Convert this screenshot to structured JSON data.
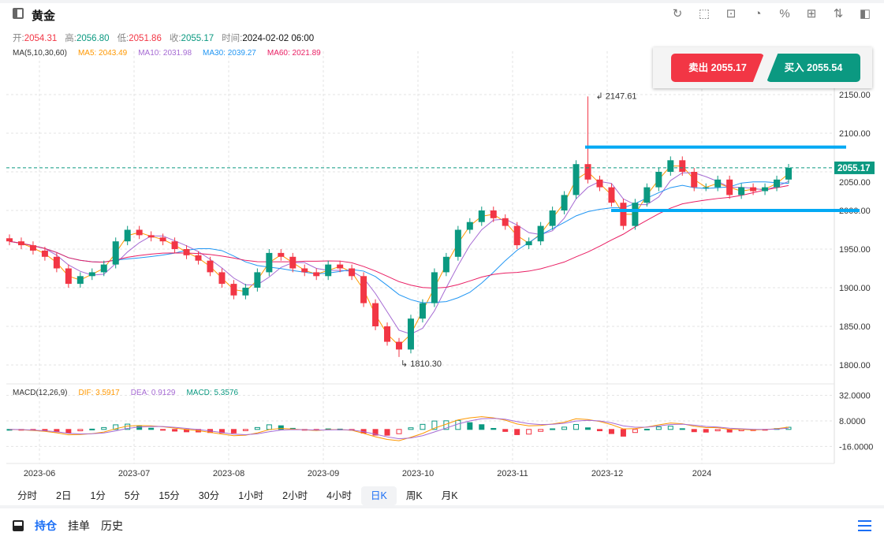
{
  "header": {
    "title": "黄金",
    "tools": [
      "refresh-icon",
      "draw-icon",
      "indicator-icon",
      "pie-chart-icon",
      "percent-icon",
      "grid-icon",
      "sort-icon",
      "panel-icon"
    ]
  },
  "ohlc": {
    "open_label": "开:",
    "open": "2054.31",
    "high_label": "高:",
    "high": "2056.80",
    "low_label": "低:",
    "low": "2051.86",
    "close_label": "收:",
    "close": "2055.17",
    "time_label": "时间:",
    "time": "2024-02-02 06:00"
  },
  "ma": {
    "label": "MA(5,10,30,60)",
    "ma5": "MA5: 2043.49",
    "ma10": "MA10: 2031.98",
    "ma30": "MA30: 2039.27",
    "ma60": "MA60: 2021.89"
  },
  "macd": {
    "label": "MACD(12,26,9)",
    "dif": "DIF: 3.5917",
    "dea": "DEA: 0.9129",
    "macd": "MACD: 5.3576"
  },
  "trade": {
    "sell": "卖出 2055.17",
    "buy": "买入 2055.54"
  },
  "timeframes": [
    "分时",
    "2日",
    "1分",
    "5分",
    "15分",
    "30分",
    "1小时",
    "2小时",
    "4小时",
    "日K",
    "周K",
    "月K"
  ],
  "active_timeframe": "日K",
  "bottom_tabs": [
    "持仓",
    "挂单",
    "历史"
  ],
  "colors": {
    "up": "#0b9981",
    "down": "#f23645",
    "ma5": "#ff9800",
    "ma10": "#a66bd3",
    "ma30": "#2196f3",
    "ma60": "#e91e63",
    "level_line": "#03a9f4",
    "accent": "#1a6ef5"
  },
  "chart_data": {
    "type": "candlestick",
    "price_ticks": [
      "2150.00",
      "2100.00",
      "2050.00",
      "2000.00",
      "1950.00",
      "1900.00",
      "1850.00",
      "1800.00"
    ],
    "macd_ticks": [
      "32.0000",
      "8.0000",
      "-16.0000"
    ],
    "date_ticks": [
      "2023-06",
      "2023-07",
      "2023-08",
      "2023-09",
      "2023-10",
      "2023-11",
      "2023-12",
      "2024"
    ],
    "ylim": [
      1790,
      2160
    ],
    "current_price": "2055.17",
    "max_label": "2147.61",
    "min_label": "1810.30",
    "horizontal_levels": [
      2082,
      2000
    ],
    "grid": true,
    "closes": [
      1960,
      1955,
      1948,
      1940,
      1925,
      1905,
      1915,
      1920,
      1930,
      1960,
      1975,
      1968,
      1965,
      1960,
      1950,
      1942,
      1935,
      1920,
      1905,
      1890,
      1900,
      1920,
      1945,
      1940,
      1925,
      1920,
      1915,
      1930,
      1925,
      1915,
      1880,
      1850,
      1830,
      1820,
      1860,
      1880,
      1920,
      1940,
      1975,
      1985,
      2000,
      1990,
      1980,
      1955,
      1960,
      1980,
      2000,
      2020,
      2060,
      2040,
      2030,
      2010,
      1980,
      2010,
      2030,
      2050,
      2065,
      2050,
      2030,
      2030,
      2040,
      2020,
      2030,
      2025,
      2030,
      2040,
      2055.17
    ],
    "spike_high": 2147.61,
    "spike_index": 49,
    "low_point": 1810.3,
    "low_index": 33
  }
}
